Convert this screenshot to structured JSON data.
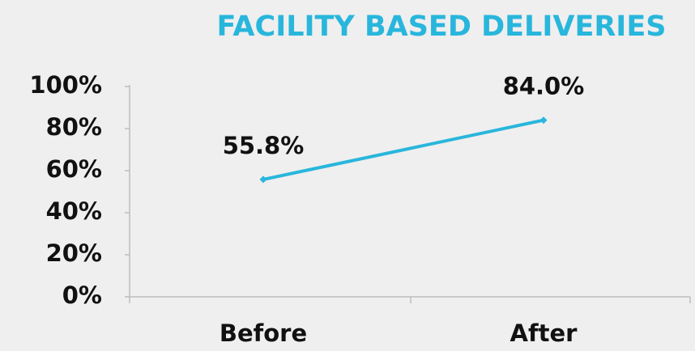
{
  "chart_data": {
    "type": "line",
    "title": "FACILITY BASED DELIVERIES",
    "categories": [
      "Before",
      "After"
    ],
    "values": [
      55.8,
      84.0
    ],
    "value_labels": [
      "55.8%",
      "84.0%"
    ],
    "color": "#29b6dc",
    "ylim": [
      0,
      100
    ],
    "yticks": [
      {
        "value": 0,
        "label": "0%"
      },
      {
        "value": 20,
        "label": "20%"
      },
      {
        "value": 40,
        "label": "40%"
      },
      {
        "value": 60,
        "label": "60%"
      },
      {
        "value": 80,
        "label": "80%"
      },
      {
        "value": 100,
        "label": "100%"
      }
    ],
    "grid": false
  }
}
